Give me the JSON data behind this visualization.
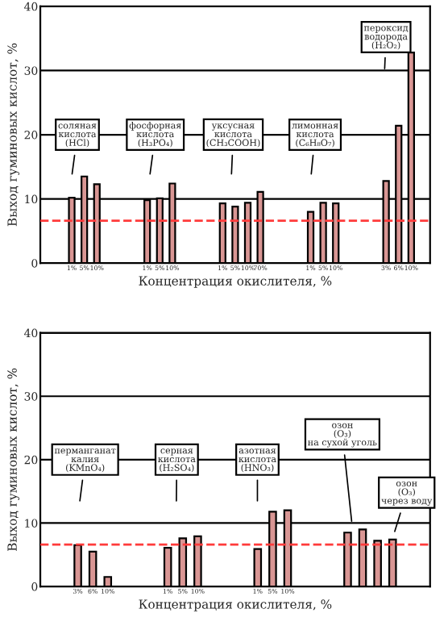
{
  "chart_data": [
    {
      "type": "bar",
      "ylabel": "Выход гуминовых кислот, %",
      "xlabel": "Концентрация окислителя, %",
      "categories": [
        null,
        null,
        "1%",
        "5%",
        "10%",
        null,
        null,
        null,
        "1%",
        "5%",
        "10%",
        null,
        null,
        null,
        "1%",
        "5%",
        "10%",
        "70%",
        null,
        null,
        null,
        "1%",
        "5%",
        "10%",
        null,
        null,
        null,
        "3%",
        "6%",
        "10%",
        null
      ],
      "series": [
        {
          "color": "#d99694",
          "values": [
            null,
            null,
            10.2,
            13.5,
            12.3,
            null,
            null,
            null,
            9.8,
            10.1,
            12.4,
            null,
            null,
            null,
            9.3,
            8.8,
            9.4,
            11.1,
            null,
            null,
            null,
            8.0,
            9.4,
            9.3,
            null,
            null,
            null,
            12.8,
            21.4,
            32.8,
            null
          ]
        }
      ],
      "ylim": [
        0,
        40
      ],
      "yticks": [
        0,
        10,
        20,
        30,
        40
      ],
      "grid": "y",
      "ref_lines": [
        {
          "axis": "y",
          "value": 6.6,
          "color": "#ff3b3b",
          "line_style": "dashed"
        }
      ],
      "annotations": [
        "соляная\nкислота\n(HCl)",
        "фосфорная\nкислота\n(H₃PO₄)",
        "уксусная\nкислота\n(CH₃COOH)",
        "лимонная\nкислота\n(C₆H₈O₇)",
        "пероксид\nводорода\n(H₂O₂)"
      ]
    },
    {
      "type": "bar",
      "ylabel": "Выход гуминовых кислот, %",
      "xlabel": "Концентрация окислителя, %",
      "categories": [
        null,
        null,
        "3%",
        "6%",
        "10%",
        null,
        null,
        null,
        "1%",
        "5%",
        "10%",
        null,
        null,
        null,
        "1%",
        "5%",
        "10%",
        null,
        null,
        null,
        null,
        null,
        null,
        null,
        null,
        null
      ],
      "series": [
        {
          "color": "#d99694",
          "values": [
            null,
            null,
            6.5,
            5.5,
            1.5,
            null,
            null,
            null,
            6.1,
            7.6,
            7.9,
            null,
            null,
            null,
            5.9,
            11.8,
            12.0,
            null,
            null,
            null,
            8.5,
            9.0,
            7.2,
            7.4,
            null,
            null
          ]
        }
      ],
      "ylim": [
        0,
        40
      ],
      "yticks": [
        0,
        10,
        20,
        30,
        40
      ],
      "grid": "y",
      "ref_lines": [
        {
          "axis": "y",
          "value": 6.6,
          "color": "#ff3b3b",
          "line_style": "dashed"
        }
      ],
      "annotations": [
        "перманганат\nкалия\n(KMnO₄)",
        "серная\nкислота\n(H₂SO₄)",
        "азотная\nкислота\n(HNO₃)",
        "озон\n(O₃)\nна сухой уголь",
        "озон\n(O₃)\nчерез воду"
      ]
    }
  ]
}
